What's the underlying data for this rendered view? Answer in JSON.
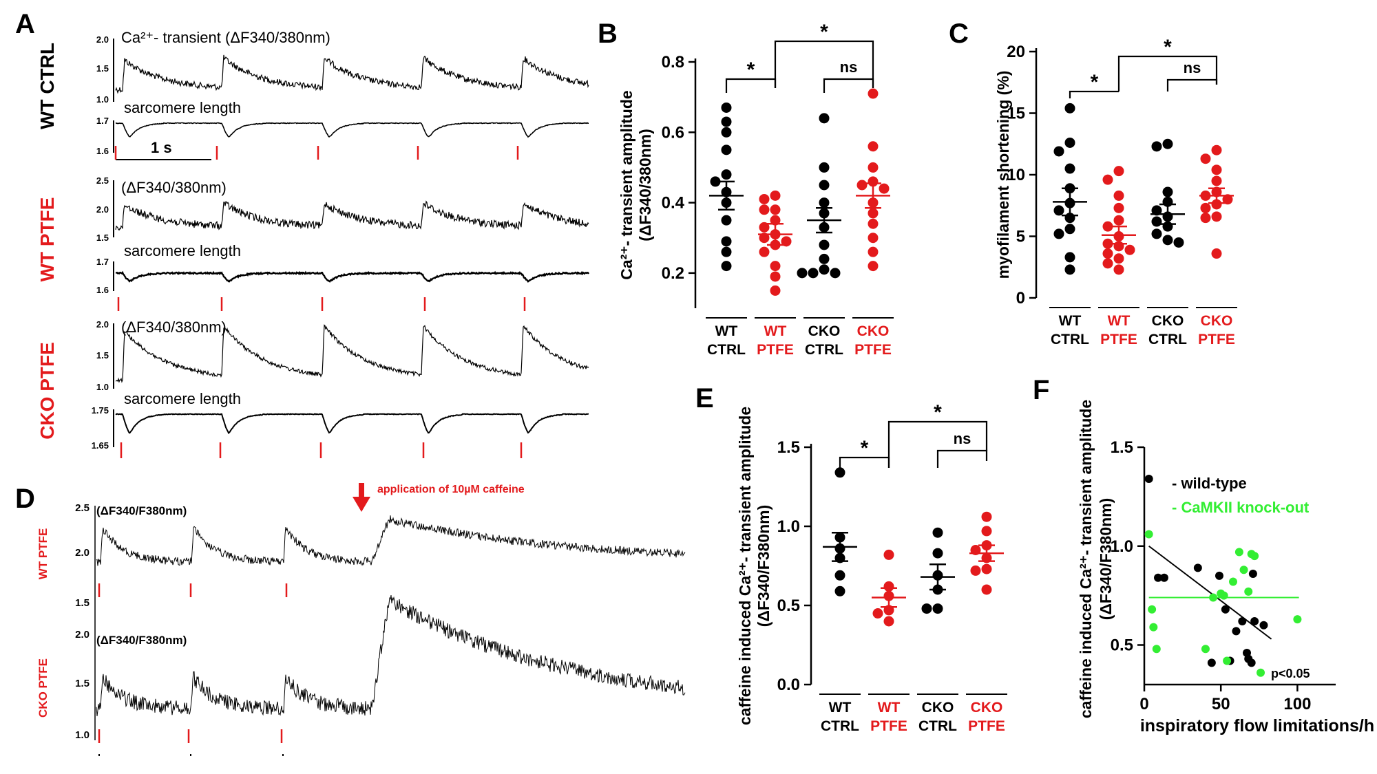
{
  "colors": {
    "black": "#000000",
    "red": "#e31a1c",
    "green": "#33ee33"
  },
  "panels": {
    "A": {
      "label": "A",
      "conditions": [
        "WT CTRL",
        "WT PTFE",
        "CKO PTFE"
      ],
      "blocks": [
        {
          "ca_title": "Ca²⁺- transient (ΔF340/380nm)",
          "ca_ticks": [
            "2.0",
            "1.5",
            "1.0"
          ],
          "sl_title": "sarcomere length",
          "sl_ticks": [
            "1.7",
            "1.6"
          ],
          "scale": "1 s"
        },
        {
          "ca_title": "(ΔF340/380nm)",
          "ca_ticks": [
            "2.5",
            "2.0",
            "1.5"
          ],
          "sl_title": "sarcomere length",
          "sl_ticks": [
            "1.7",
            "1.6"
          ]
        },
        {
          "ca_title": "(ΔF340/380nm)",
          "ca_ticks": [
            "2.0",
            "1.5",
            "1.0"
          ],
          "sl_title": "sarcomere length",
          "sl_ticks": [
            "1.75",
            "1.65"
          ]
        }
      ]
    },
    "D": {
      "label": "D",
      "annotation": "application of 10µM caffeine",
      "traces": [
        {
          "condition": "WT PTFE",
          "title": "(ΔF340/F380nm)",
          "ticks": [
            "2.5",
            "2.0",
            "1.5"
          ]
        },
        {
          "condition": "CKO PTFE",
          "title": "(ΔF340/F380nm)",
          "ticks": [
            "2.0",
            "1.5",
            "1.0"
          ]
        }
      ]
    },
    "F": {
      "label": "F",
      "legend": [
        "- wild-type",
        "- CaMKII knock-out"
      ],
      "pvalue": "p<0.05"
    }
  },
  "chart_data": [
    {
      "id": "B",
      "type": "scatter",
      "ylabel_line1": "Ca²⁺- transient amplitude",
      "ylabel_line2": "(ΔF340/380nm)",
      "ylim": [
        0.1,
        0.8
      ],
      "yticks": [
        "0.2",
        "0.4",
        "0.6",
        "0.8"
      ],
      "groups": [
        {
          "name": [
            "WT",
            "CTRL"
          ],
          "color": "black",
          "mean": 0.42,
          "sem": 0.04,
          "values": [
            0.67,
            0.63,
            0.6,
            0.55,
            0.48,
            0.46,
            0.43,
            0.4,
            0.35,
            0.29,
            0.26,
            0.22
          ]
        },
        {
          "name": [
            "WT",
            "PTFE"
          ],
          "color": "red",
          "mean": 0.31,
          "sem": 0.03,
          "values": [
            0.42,
            0.41,
            0.38,
            0.38,
            0.35,
            0.33,
            0.31,
            0.3,
            0.29,
            0.28,
            0.26,
            0.22,
            0.19,
            0.15
          ]
        },
        {
          "name": [
            "CKO",
            "CTRL"
          ],
          "color": "black",
          "mean": 0.35,
          "sem": 0.035,
          "values": [
            0.64,
            0.5,
            0.45,
            0.4,
            0.37,
            0.33,
            0.28,
            0.24,
            0.21,
            0.2,
            0.2,
            0.2
          ]
        },
        {
          "name": [
            "CKO",
            "PTFE"
          ],
          "color": "red",
          "mean": 0.42,
          "sem": 0.035,
          "values": [
            0.71,
            0.56,
            0.5,
            0.46,
            0.45,
            0.44,
            0.4,
            0.37,
            0.34,
            0.3,
            0.26,
            0.22
          ]
        }
      ],
      "sig": [
        {
          "a": 0,
          "b": 1,
          "label": "*"
        },
        {
          "a": 2,
          "b": 3,
          "label": "ns"
        },
        {
          "a": 1,
          "b": 3,
          "label": "*"
        }
      ]
    },
    {
      "id": "C",
      "type": "scatter",
      "ylabel_line1": "myofilament shortening (%)",
      "ylim": [
        0,
        20
      ],
      "yticks": [
        "0",
        "5",
        "10",
        "15",
        "20"
      ],
      "groups": [
        {
          "name": [
            "WT",
            "CTRL"
          ],
          "color": "black",
          "mean": 7.8,
          "sem": 1.1,
          "values": [
            15.4,
            12.6,
            11.9,
            10.5,
            8.9,
            7.7,
            7.1,
            6.5,
            5.6,
            5.2,
            3.3,
            2.3
          ]
        },
        {
          "name": [
            "WT",
            "PTFE"
          ],
          "color": "red",
          "mean": 5.1,
          "sem": 0.7,
          "values": [
            10.3,
            9.6,
            8.3,
            7.3,
            6.3,
            5.8,
            5.0,
            4.4,
            4.2,
            3.9,
            3.6,
            3.2,
            2.8,
            2.3
          ]
        },
        {
          "name": [
            "CKO",
            "CTRL"
          ],
          "color": "black",
          "mean": 6.8,
          "sem": 0.8,
          "values": [
            12.5,
            12.3,
            8.6,
            7.8,
            7.1,
            6.6,
            6.2,
            5.8,
            5.2,
            4.7,
            4.5
          ]
        },
        {
          "name": [
            "CKO",
            "PTFE"
          ],
          "color": "red",
          "mean": 8.3,
          "sem": 0.6,
          "values": [
            12.0,
            11.3,
            10.4,
            9.5,
            8.6,
            8.3,
            8.0,
            7.6,
            7.3,
            6.6,
            6.5,
            3.6
          ]
        }
      ],
      "sig": [
        {
          "a": 0,
          "b": 1,
          "label": "*"
        },
        {
          "a": 2,
          "b": 3,
          "label": "ns"
        },
        {
          "a": 1,
          "b": 3,
          "label": "*"
        }
      ]
    },
    {
      "id": "E",
      "type": "scatter",
      "ylabel_line1": "caffeine induced Ca²⁺- transient amplitude",
      "ylabel_line2": "(ΔF340/F380nm)",
      "ylim": [
        0,
        1.5
      ],
      "yticks": [
        "0.0",
        "0.5",
        "1.0",
        "1.5"
      ],
      "groups": [
        {
          "name": [
            "WT",
            "CTRL"
          ],
          "color": "black",
          "mean": 0.87,
          "sem": 0.09,
          "values": [
            1.34,
            0.93,
            0.86,
            0.8,
            0.69,
            0.59
          ]
        },
        {
          "name": [
            "WT",
            "PTFE"
          ],
          "color": "red",
          "mean": 0.55,
          "sem": 0.06,
          "values": [
            0.82,
            0.62,
            0.56,
            0.47,
            0.45,
            0.4
          ]
        },
        {
          "name": [
            "CKO",
            "CTRL"
          ],
          "color": "black",
          "mean": 0.68,
          "sem": 0.08,
          "values": [
            0.96,
            0.83,
            0.69,
            0.6,
            0.48,
            0.48
          ]
        },
        {
          "name": [
            "CKO",
            "PTFE"
          ],
          "color": "red",
          "mean": 0.83,
          "sem": 0.05,
          "values": [
            1.06,
            0.97,
            0.88,
            0.85,
            0.8,
            0.73,
            0.72,
            0.6
          ]
        }
      ],
      "sig": [
        {
          "a": 0,
          "b": 1,
          "label": "*"
        },
        {
          "a": 2,
          "b": 3,
          "label": "ns"
        },
        {
          "a": 1,
          "b": 3,
          "label": "*"
        }
      ]
    },
    {
      "id": "F",
      "type": "scatter",
      "xlabel": "inspiratory flow limitations/h",
      "ylabel_line1": "caffeine induced Ca²⁺- transient amplitude",
      "ylabel_line2": "(ΔF340/F380nm)",
      "xlim": [
        0,
        125
      ],
      "ylim": [
        0.3,
        1.5
      ],
      "xticks": [
        "0",
        "50",
        "100"
      ],
      "yticks": [
        "0.5",
        "1.0",
        "1.5"
      ],
      "series": [
        {
          "name": "wild-type",
          "color": "black",
          "points": [
            [
              3,
              1.34
            ],
            [
              9,
              0.84
            ],
            [
              13,
              0.84
            ],
            [
              35,
              0.89
            ],
            [
              44,
              0.41
            ],
            [
              49,
              0.85
            ],
            [
              53,
              0.68
            ],
            [
              56,
              0.42
            ],
            [
              60,
              0.57
            ],
            [
              64,
              0.62
            ],
            [
              67,
              0.46
            ],
            [
              68,
              0.43
            ],
            [
              70,
              0.41
            ],
            [
              72,
              0.62
            ],
            [
              78,
              0.6
            ],
            [
              71,
              0.86
            ]
          ],
          "fit": [
            [
              3,
              1.0
            ],
            [
              83,
              0.53
            ]
          ]
        },
        {
          "name": "CaMKII knock-out",
          "color": "green",
          "points": [
            [
              3,
              1.06
            ],
            [
              5,
              0.68
            ],
            [
              6,
              0.59
            ],
            [
              8,
              0.48
            ],
            [
              40,
              0.48
            ],
            [
              45,
              0.74
            ],
            [
              50,
              0.76
            ],
            [
              52,
              0.75
            ],
            [
              58,
              0.82
            ],
            [
              62,
              0.97
            ],
            [
              65,
              0.88
            ],
            [
              68,
              0.77
            ],
            [
              70,
              0.96
            ],
            [
              72,
              0.95
            ],
            [
              76,
              0.36
            ],
            [
              100,
              0.63
            ],
            [
              54,
              0.42
            ]
          ],
          "fit": [
            [
              3,
              0.74
            ],
            [
              101,
              0.74
            ]
          ]
        }
      ]
    }
  ]
}
